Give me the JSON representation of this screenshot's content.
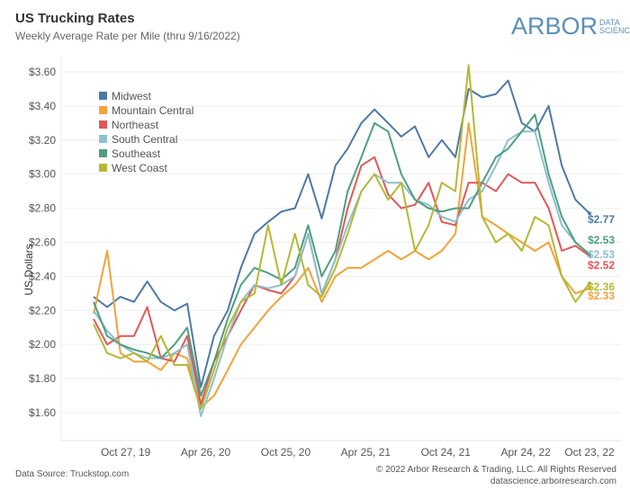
{
  "header": {
    "title": "US Trucking Rates",
    "subtitle": "Weekly Average Rate per Mile (thru 9/16/2022)",
    "logo_text": "ARBOR",
    "logo_small_1": "DATA",
    "logo_small_2": "SCIENCE"
  },
  "footer": {
    "source": "Data Source: Truckstop.com",
    "copyright": "© 2022 Arbor Research & Trading, LLC. All Rights Reserved",
    "site": "datascience.arborresearch.com"
  },
  "chart_data": {
    "type": "line",
    "title": "US Trucking Rates",
    "ylabel": "US Dollars",
    "xlabel": "",
    "ylim": [
      1.5,
      3.7
    ],
    "yticks": [
      "$1.60",
      "$1.80",
      "$2.00",
      "$2.20",
      "$2.40",
      "$2.60",
      "$2.80",
      "$3.00",
      "$3.20",
      "$3.40",
      "$3.60"
    ],
    "ytick_values": [
      1.6,
      1.8,
      2.0,
      2.2,
      2.4,
      2.6,
      2.8,
      3.0,
      3.2,
      3.4,
      3.6
    ],
    "xticks": [
      "Oct 27, 19",
      "Apr 26, 20",
      "Oct 25, 20",
      "Apr 25, 21",
      "Oct 24, 21",
      "Apr 24, 22",
      "Oct 23, 22"
    ],
    "xtick_dates": [
      "2019-10-27",
      "2020-04-26",
      "2020-10-25",
      "2021-04-25",
      "2021-10-24",
      "2022-04-24",
      "2022-10-23"
    ],
    "grid": "horizontal",
    "legend": "top-left",
    "x": [
      "2019-08-15",
      "2019-09-15",
      "2019-10-15",
      "2019-11-15",
      "2019-12-15",
      "2020-01-15",
      "2020-02-15",
      "2020-03-15",
      "2020-04-15",
      "2020-05-15",
      "2020-06-15",
      "2020-07-15",
      "2020-08-15",
      "2020-09-15",
      "2020-10-15",
      "2020-11-15",
      "2020-12-15",
      "2021-01-15",
      "2021-02-15",
      "2021-03-15",
      "2021-04-15",
      "2021-05-15",
      "2021-06-15",
      "2021-07-15",
      "2021-08-15",
      "2021-09-15",
      "2021-10-15",
      "2021-11-15",
      "2021-12-15",
      "2022-01-15",
      "2022-02-15",
      "2022-03-15",
      "2022-04-15",
      "2022-05-15",
      "2022-06-15",
      "2022-07-15",
      "2022-08-15",
      "2022-09-16"
    ],
    "series": [
      {
        "name": "Midwest",
        "color": "#4e79a7",
        "end_label": "$2.77",
        "values": [
          2.28,
          2.22,
          2.28,
          2.25,
          2.37,
          2.25,
          2.2,
          2.24,
          1.75,
          2.05,
          2.2,
          2.45,
          2.65,
          2.72,
          2.78,
          2.8,
          3.0,
          2.74,
          3.05,
          3.15,
          3.3,
          3.38,
          3.3,
          3.22,
          3.28,
          3.1,
          3.2,
          3.1,
          3.5,
          3.45,
          3.47,
          3.55,
          3.3,
          3.25,
          3.4,
          3.05,
          2.85,
          2.77
        ]
      },
      {
        "name": "Mountain Central",
        "color": "#f1a33a",
        "end_label": "$2.33",
        "values": [
          2.18,
          2.55,
          1.95,
          1.9,
          1.9,
          1.85,
          1.95,
          1.92,
          1.63,
          1.7,
          1.85,
          2.0,
          2.1,
          2.2,
          2.28,
          2.35,
          2.45,
          2.25,
          2.4,
          2.45,
          2.45,
          2.5,
          2.55,
          2.5,
          2.55,
          2.5,
          2.55,
          2.65,
          3.3,
          2.75,
          2.7,
          2.65,
          2.6,
          2.55,
          2.6,
          2.4,
          2.3,
          2.33
        ]
      },
      {
        "name": "Northeast",
        "color": "#e15759",
        "end_label": "$2.52",
        "values": [
          2.15,
          2.0,
          2.05,
          2.05,
          2.22,
          1.92,
          1.9,
          2.05,
          1.65,
          1.9,
          2.05,
          2.2,
          2.35,
          2.32,
          2.3,
          2.4,
          2.65,
          2.3,
          2.5,
          2.8,
          3.05,
          3.1,
          2.88,
          2.8,
          2.82,
          2.95,
          2.72,
          2.7,
          2.95,
          2.95,
          2.9,
          3.0,
          2.95,
          2.95,
          2.8,
          2.55,
          2.58,
          2.52
        ]
      },
      {
        "name": "South Central",
        "color": "#8cc0cc",
        "end_label": "$2.53",
        "values": [
          2.2,
          2.08,
          2.0,
          1.95,
          1.92,
          1.92,
          1.95,
          2.0,
          1.58,
          1.8,
          2.05,
          2.25,
          2.35,
          2.33,
          2.35,
          2.4,
          2.65,
          2.3,
          2.5,
          2.7,
          2.9,
          3.0,
          2.95,
          2.95,
          2.85,
          2.82,
          2.75,
          2.72,
          2.85,
          2.9,
          3.05,
          3.2,
          3.25,
          3.25,
          2.95,
          2.7,
          2.6,
          2.53
        ]
      },
      {
        "name": "Southeast",
        "color": "#4f9f7f",
        "end_label": "$2.53",
        "values": [
          2.25,
          2.05,
          2.0,
          1.97,
          1.95,
          1.92,
          2.0,
          2.1,
          1.7,
          1.9,
          2.15,
          2.35,
          2.45,
          2.42,
          2.38,
          2.45,
          2.7,
          2.4,
          2.55,
          2.9,
          3.1,
          3.3,
          3.25,
          3.0,
          2.85,
          2.8,
          2.78,
          2.8,
          2.8,
          2.95,
          3.1,
          3.15,
          3.25,
          3.35,
          3.0,
          2.75,
          2.6,
          2.53
        ]
      },
      {
        "name": "West Coast",
        "color": "#b5b834",
        "end_label": "$2.36",
        "values": [
          2.12,
          1.95,
          1.92,
          1.95,
          1.9,
          2.05,
          1.88,
          1.88,
          1.62,
          1.85,
          2.1,
          2.25,
          2.3,
          2.7,
          2.35,
          2.65,
          2.35,
          2.28,
          2.45,
          2.65,
          2.9,
          3.0,
          2.85,
          2.95,
          2.55,
          2.7,
          2.95,
          2.9,
          3.64,
          2.75,
          2.6,
          2.65,
          2.55,
          2.75,
          2.7,
          2.4,
          2.25,
          2.36
        ]
      }
    ]
  }
}
